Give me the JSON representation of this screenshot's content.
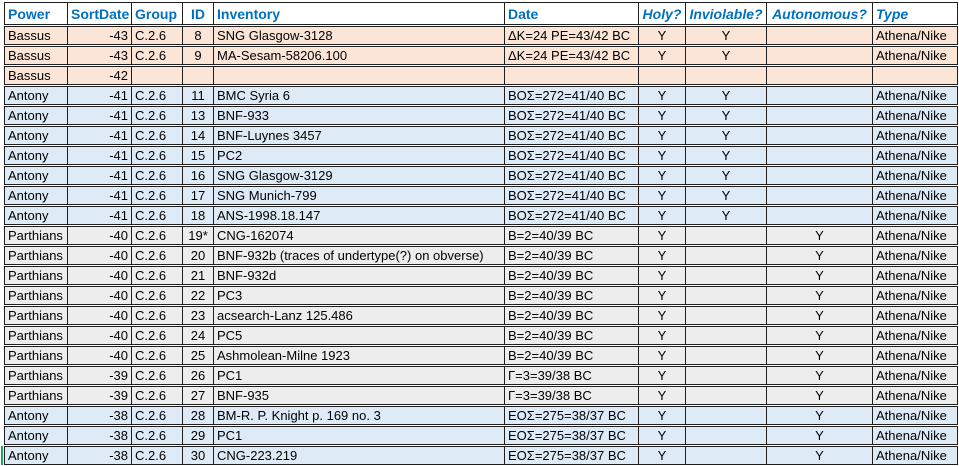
{
  "colors": {
    "header_text": "#0070C0",
    "grid_border": "#1F1F1F",
    "active_cell_green": "#21A366",
    "row_themes": {
      "bassus": "#FBE5D6",
      "antony": "#DEEBF7",
      "parthians": "#EDEDED"
    }
  },
  "table": {
    "columns": [
      {
        "label": "Power",
        "italic": false
      },
      {
        "label": "SortDate",
        "italic": false
      },
      {
        "label": "Group",
        "italic": false
      },
      {
        "label": "ID",
        "italic": false
      },
      {
        "label": "Inventory",
        "italic": false
      },
      {
        "label": "Date",
        "italic": false
      },
      {
        "label": "Holy?",
        "italic": true
      },
      {
        "label": "Inviolable?",
        "italic": true
      },
      {
        "label": "Autonomous?",
        "italic": true
      },
      {
        "label": "Type",
        "italic": true
      }
    ],
    "rows": [
      {
        "theme": "bassus",
        "cells": [
          "Bassus",
          "-43",
          "C.2.6",
          "8",
          "SNG Glasgow-3128",
          "ΔK=24 PE=43/42 BC",
          "Y",
          "Y",
          "",
          "Athena/Nike"
        ]
      },
      {
        "theme": "bassus",
        "cells": [
          "Bassus",
          "-43",
          "C.2.6",
          "9",
          "MA-Sesam-58206.100",
          "ΔK=24 PE=43/42 BC",
          "Y",
          "Y",
          "",
          "Athena/Nike"
        ]
      },
      {
        "theme": "bassus",
        "cells": [
          "Bassus",
          "-42",
          "",
          "",
          "",
          "",
          "",
          "",
          "",
          ""
        ]
      },
      {
        "theme": "antony",
        "cells": [
          "Antony",
          "-41",
          "C.2.6",
          "11",
          "BMC Syria 6",
          "ΒΟΣ=272=41/40 BC",
          "Y",
          "Y",
          "",
          "Athena/Nike"
        ]
      },
      {
        "theme": "antony",
        "cells": [
          "Antony",
          "-41",
          "C.2.6",
          "13",
          "BNF-933",
          "ΒΟΣ=272=41/40 BC",
          "Y",
          "Y",
          "",
          "Athena/Nike"
        ]
      },
      {
        "theme": "antony",
        "cells": [
          "Antony",
          "-41",
          "C.2.6",
          "14",
          "BNF-Luynes 3457",
          "ΒΟΣ=272=41/40 BC",
          "Y",
          "Y",
          "",
          "Athena/Nike"
        ]
      },
      {
        "theme": "antony",
        "cells": [
          "Antony",
          "-41",
          "C.2.6",
          "15",
          "PC2",
          "ΒΟΣ=272=41/40 BC",
          "Y",
          "Y",
          "",
          "Athena/Nike"
        ]
      },
      {
        "theme": "antony",
        "cells": [
          "Antony",
          "-41",
          "C.2.6",
          "16",
          "SNG Glasgow-3129",
          "ΒΟΣ=272=41/40 BC",
          "Y",
          "Y",
          "",
          "Athena/Nike"
        ]
      },
      {
        "theme": "antony",
        "cells": [
          "Antony",
          "-41",
          "C.2.6",
          "17",
          "SNG Munich-799",
          "ΒΟΣ=272=41/40 BC",
          "Y",
          "Y",
          "",
          "Athena/Nike"
        ]
      },
      {
        "theme": "antony",
        "cells": [
          "Antony",
          "-41",
          "C.2.6",
          "18",
          "ANS-1998.18.147",
          "ΒΟΣ=272=41/40 BC",
          "Y",
          "Y",
          "",
          "Athena/Nike"
        ]
      },
      {
        "theme": "parthians",
        "cells": [
          "Parthians",
          "-40",
          "C.2.6",
          "19*",
          "CNG-162074",
          "B=2=40/39 BC",
          "Y",
          "",
          "Y",
          "Athena/Nike"
        ]
      },
      {
        "theme": "parthians",
        "cells": [
          "Parthians",
          "-40",
          "C.2.6",
          "20",
          "BNF-932b (traces of undertype(?) on obverse)",
          "B=2=40/39 BC",
          "Y",
          "",
          "Y",
          "Athena/Nike"
        ]
      },
      {
        "theme": "parthians",
        "cells": [
          "Parthians",
          "-40",
          "C.2.6",
          "21",
          "BNF-932d",
          "B=2=40/39 BC",
          "Y",
          "",
          "Y",
          "Athena/Nike"
        ]
      },
      {
        "theme": "parthians",
        "cells": [
          "Parthians",
          "-40",
          "C.2.6",
          "22",
          "PC3",
          "B=2=40/39 BC",
          "Y",
          "",
          "Y",
          "Athena/Nike"
        ]
      },
      {
        "theme": "parthians",
        "cells": [
          "Parthians",
          "-40",
          "C.2.6",
          "23",
          "acsearch-Lanz 125.486",
          "B=2=40/39 BC",
          "Y",
          "",
          "Y",
          "Athena/Nike"
        ]
      },
      {
        "theme": "parthians",
        "cells": [
          "Parthians",
          "-40",
          "C.2.6",
          "24",
          "PC5",
          "B=2=40/39 BC",
          "Y",
          "",
          "Y",
          "Athena/Nike"
        ]
      },
      {
        "theme": "parthians",
        "cells": [
          "Parthians",
          "-40",
          "C.2.6",
          "25",
          "Ashmolean-Milne 1923",
          "B=2=40/39 BC",
          "Y",
          "",
          "Y",
          "Athena/Nike"
        ]
      },
      {
        "theme": "parthians",
        "cells": [
          "Parthians",
          "-39",
          "C.2.6",
          "26",
          "PC1",
          "Γ=3=39/38 BC",
          "Y",
          "",
          "Y",
          "Athena/Nike"
        ]
      },
      {
        "theme": "parthians",
        "cells": [
          "Parthians",
          "-39",
          "C.2.6",
          "27",
          "BNF-935",
          "Γ=3=39/38 BC",
          "Y",
          "",
          "Y",
          "Athena/Nike"
        ]
      },
      {
        "theme": "antony",
        "cells": [
          "Antony",
          "-38",
          "C.2.6",
          "28",
          "BM-R. P. Knight p. 169 no. 3",
          "ΕΟΣ=275=38/37 BC",
          "Y",
          "",
          "Y",
          "Athena/Nike"
        ]
      },
      {
        "theme": "antony",
        "cells": [
          "Antony",
          "-38",
          "C.2.6",
          "29",
          "PC1",
          "ΕΟΣ=275=38/37 BC",
          "Y",
          "",
          "Y",
          "Athena/Nike"
        ]
      },
      {
        "theme": "antony",
        "cells": [
          "Antony",
          "-38",
          "C.2.6",
          "30",
          "CNG-223.219",
          "ΕΟΣ=275=38/37 BC",
          "Y",
          "",
          "Y",
          "Athena/Nike"
        ]
      }
    ]
  },
  "selection": {
    "row_index": 21,
    "col_index": 0
  }
}
